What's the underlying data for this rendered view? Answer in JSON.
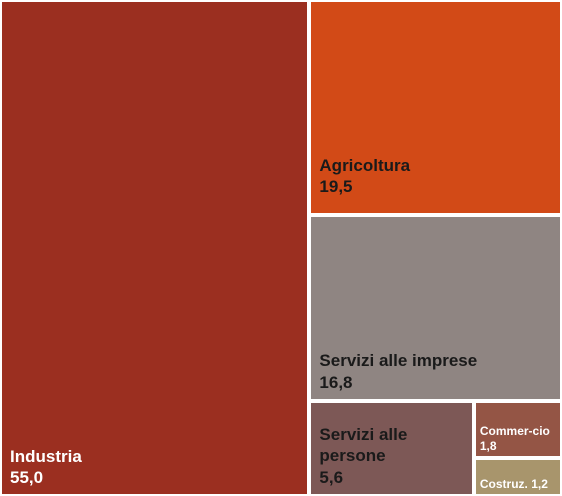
{
  "chart_data": {
    "type": "treemap",
    "categories": [
      "Industria",
      "Agricoltura",
      "Servizi alle imprese",
      "Servizi alle persone",
      "Commer-cio",
      "Costruz."
    ],
    "values": [
      55.0,
      19.5,
      16.8,
      5.6,
      1.8,
      1.2
    ],
    "value_labels": [
      "55,0",
      "19,5",
      "16,8",
      "5,6",
      "1,8",
      "1,2"
    ],
    "colors": [
      "#9b2f20",
      "#d24a17",
      "#8f8582",
      "#7d5856",
      "#945545",
      "#a8956c"
    ],
    "text_colors": [
      "#ffffff",
      "#1a1a1a",
      "#1a1a1a",
      "#1a1a1a",
      "#ffffff",
      "#ffffff"
    ]
  }
}
